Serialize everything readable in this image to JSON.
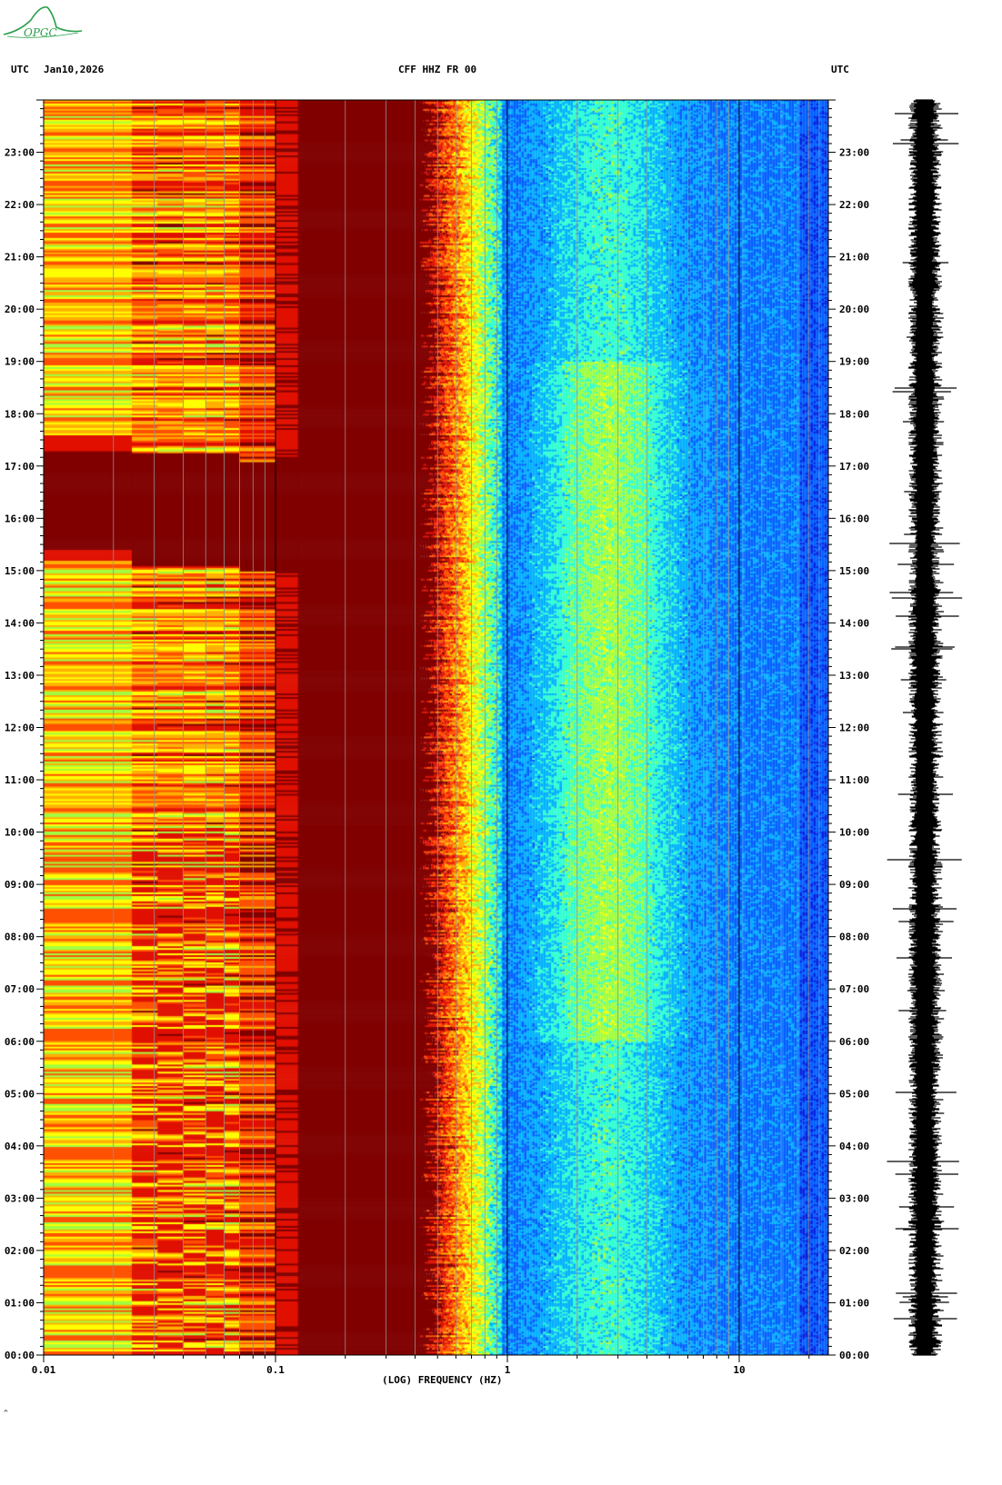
{
  "header": {
    "left_tz": "UTC",
    "date": "Jan10,2026",
    "station": "CFF HHZ FR 00",
    "right_tz": "UTC"
  },
  "logo": {
    "text": "OPGC",
    "color": "#2aa04a"
  },
  "footer_mark": "^",
  "chart_data": {
    "type": "heatmap",
    "title": "CFF HHZ FR 00",
    "xlabel": "(LOG) FREQUENCY (HZ)",
    "ylabel": "",
    "x_scale": "log",
    "xlim": [
      0.01,
      25
    ],
    "x_ticks": [
      {
        "value": 0.01,
        "label": "0.01"
      },
      {
        "value": 0.1,
        "label": "0.1"
      },
      {
        "value": 1,
        "label": "1"
      },
      {
        "value": 10,
        "label": "10"
      }
    ],
    "ylim_hours": [
      0,
      24
    ],
    "y_ticks": [
      "00:00",
      "01:00",
      "02:00",
      "03:00",
      "04:00",
      "05:00",
      "06:00",
      "07:00",
      "08:00",
      "09:00",
      "10:00",
      "11:00",
      "12:00",
      "13:00",
      "14:00",
      "15:00",
      "16:00",
      "17:00",
      "18:00",
      "19:00",
      "20:00",
      "21:00",
      "22:00",
      "23:00"
    ],
    "grid_frequencies": [
      0.02,
      0.03,
      0.04,
      0.05,
      0.06,
      0.07,
      0.08,
      0.09,
      0.1,
      0.2,
      0.3,
      0.4,
      0.5,
      0.6,
      0.7,
      0.8,
      0.9,
      1,
      2,
      3,
      4,
      5,
      6,
      7,
      8,
      9,
      10,
      20
    ],
    "colormap": [
      "#0000a0",
      "#0020e0",
      "#0060ff",
      "#00b0ff",
      "#30ffd0",
      "#a0ff40",
      "#ffff00",
      "#ffb000",
      "#ff5000",
      "#e01000",
      "#800000"
    ],
    "trace_color": "#000000"
  }
}
